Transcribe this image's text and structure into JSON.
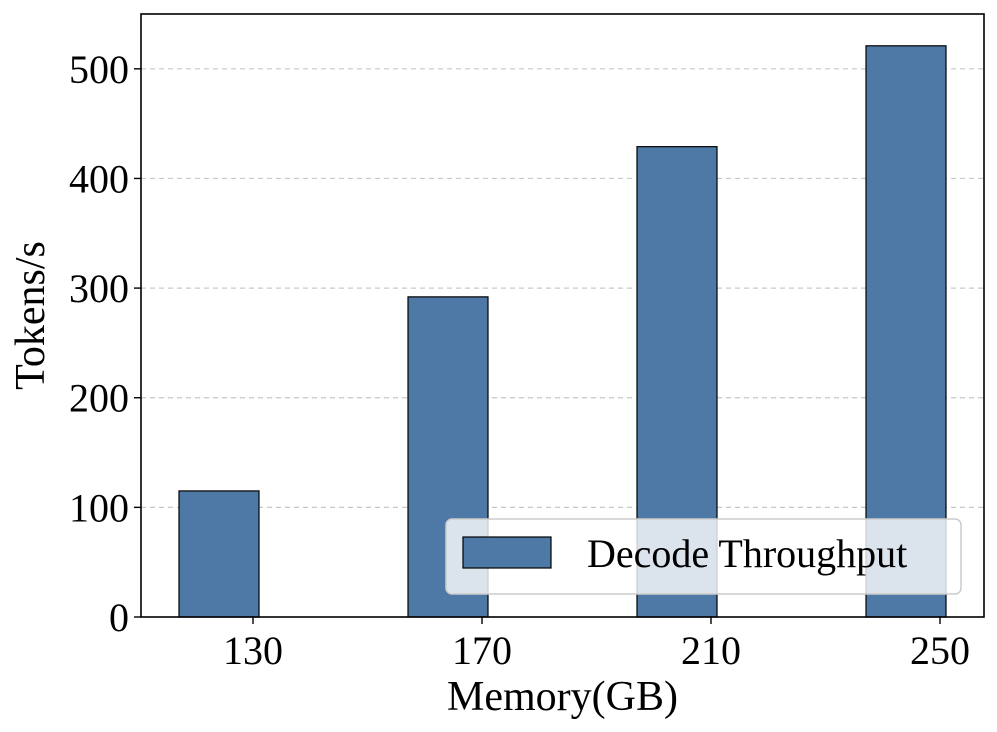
{
  "chart_data": {
    "type": "bar",
    "categories": [
      "130",
      "170",
      "210",
      "250"
    ],
    "series": [
      {
        "name": "Decode Throughput",
        "values": [
          115,
          292,
          429,
          521
        ],
        "color": "#4e79a7"
      }
    ],
    "xlabel": "Memory(GB)",
    "ylabel": "Tokens/s",
    "ylim": [
      0,
      550
    ],
    "yticks": [
      0,
      100,
      200,
      300,
      400,
      500
    ],
    "grid": "y-dashed",
    "legend_position": "bottom-right"
  }
}
